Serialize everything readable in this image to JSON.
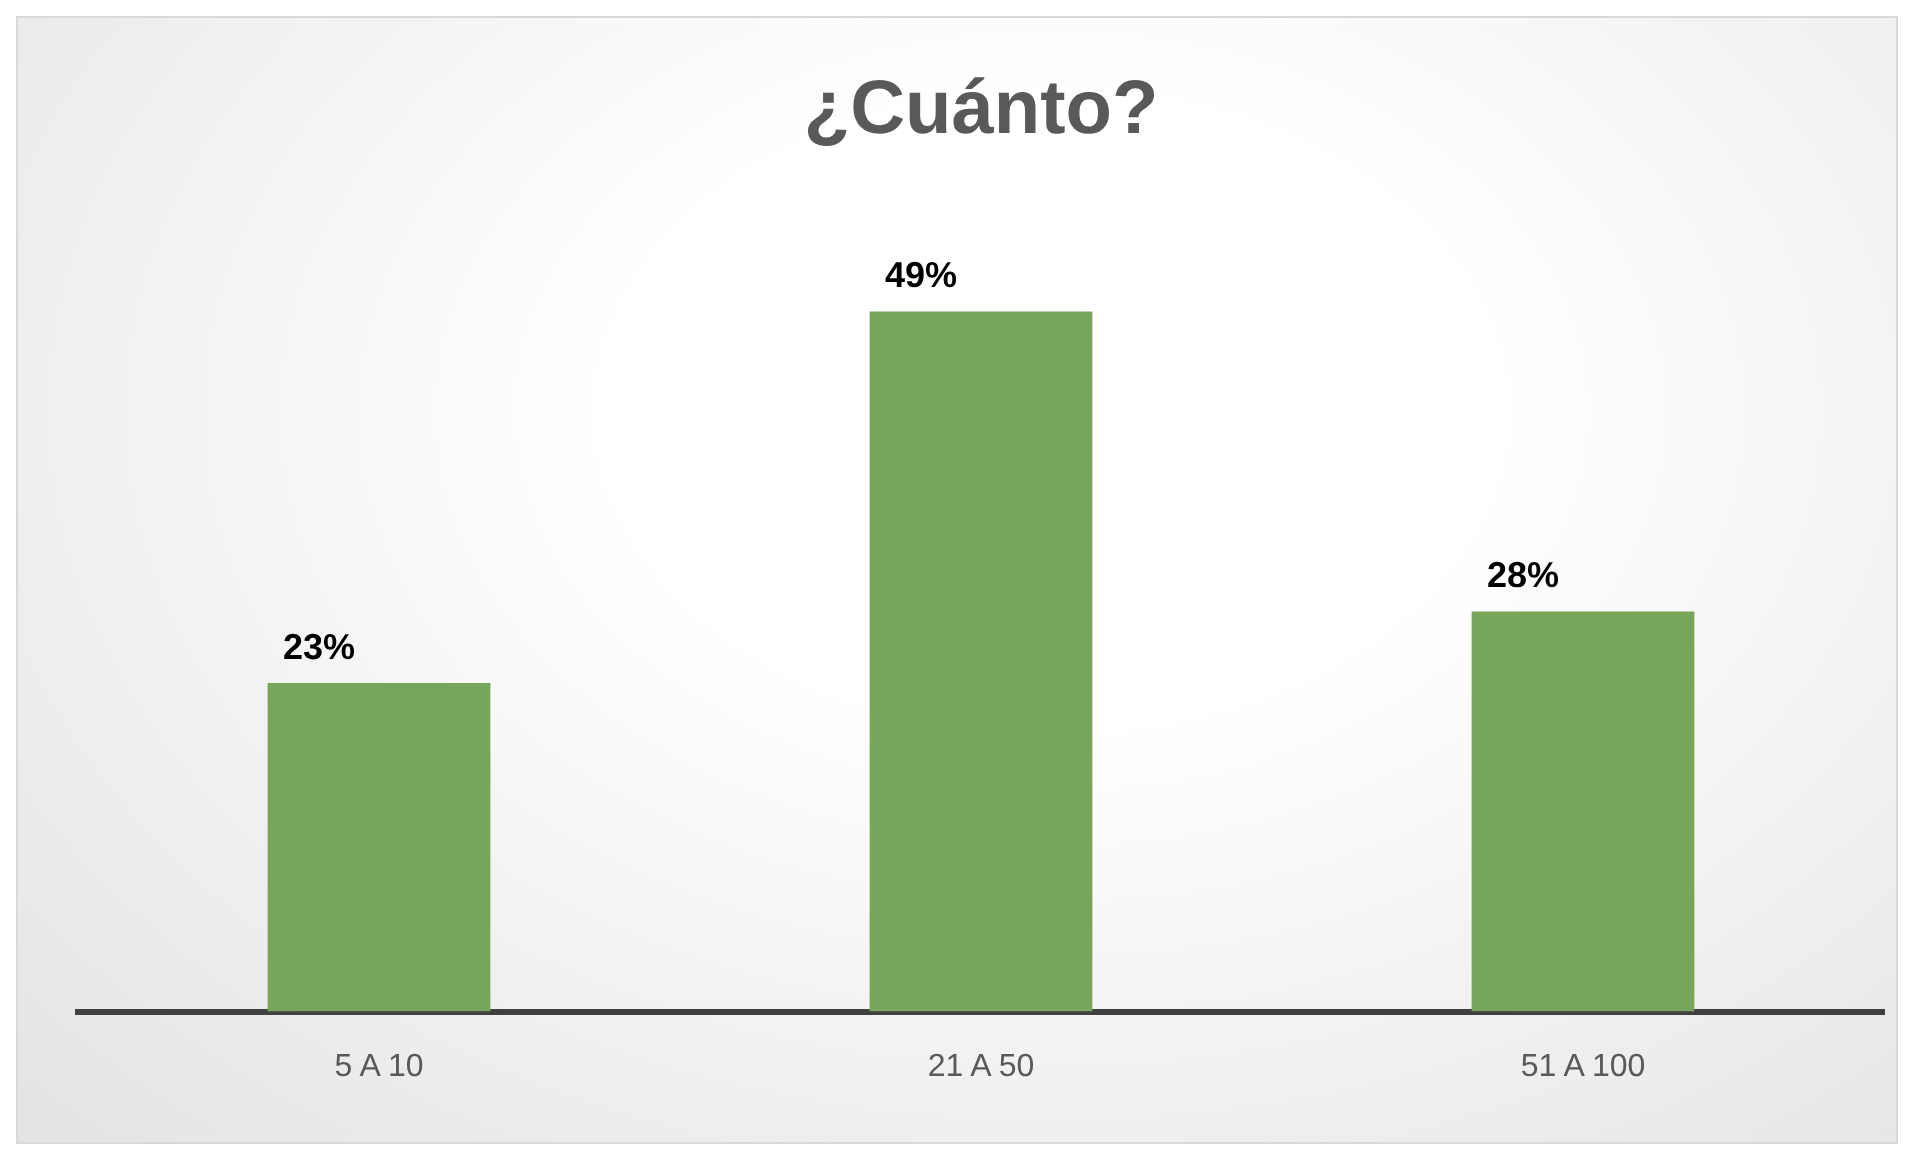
{
  "chart_data": {
    "type": "bar",
    "title": "¿Cuánto?",
    "categories": [
      "5 A 10",
      "21 A 50",
      "51 A 100"
    ],
    "values": [
      23,
      49,
      28
    ],
    "value_labels": [
      "23%",
      "49%",
      "28%"
    ],
    "color": "#77a65a",
    "legend": false
  }
}
